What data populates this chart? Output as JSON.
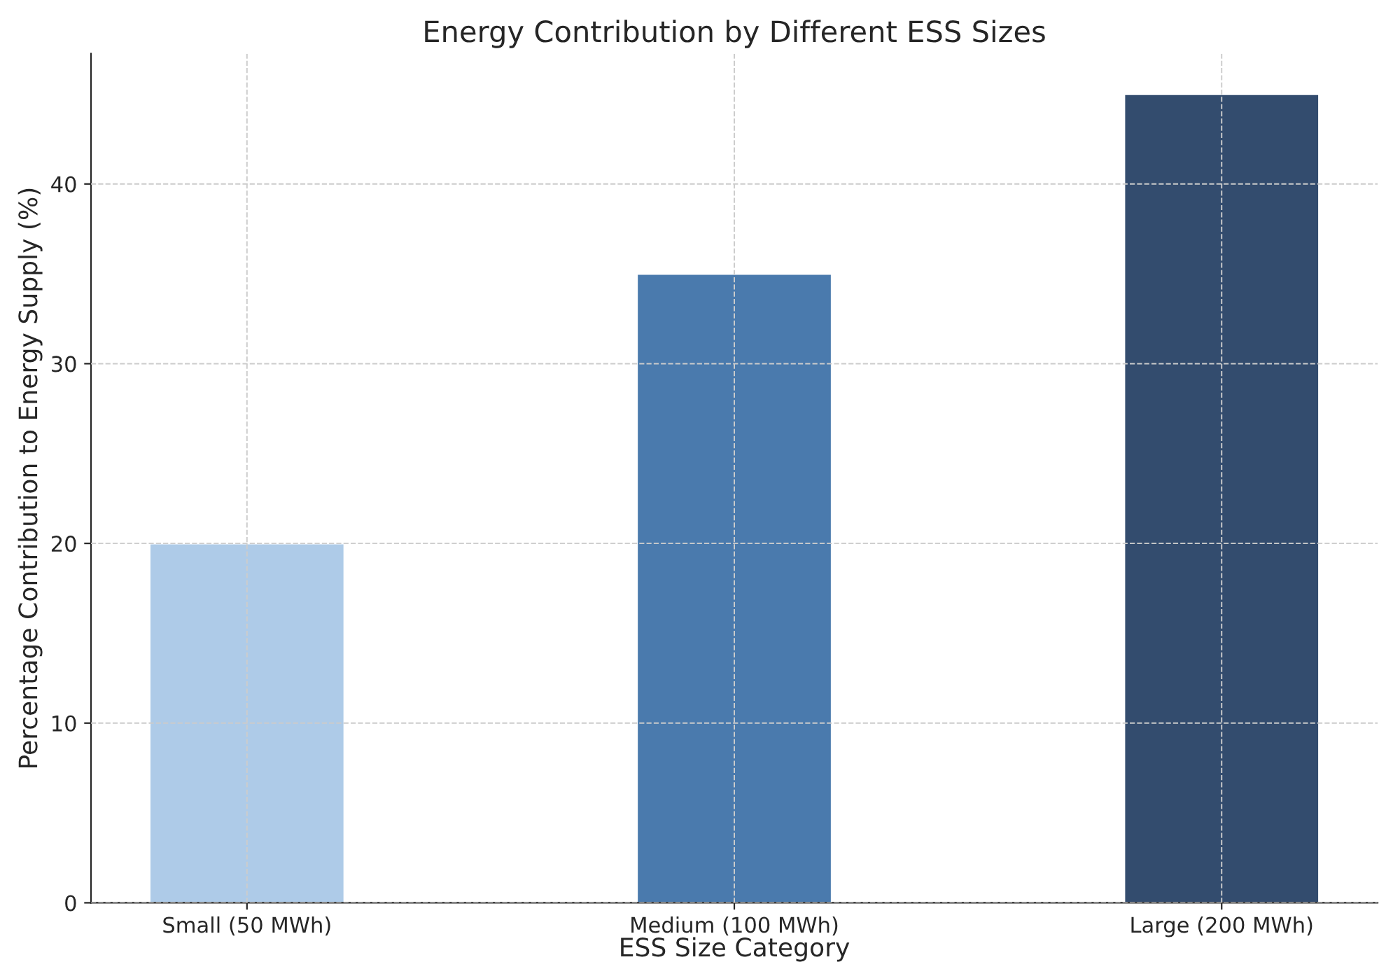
{
  "chart_data": {
    "type": "bar",
    "title": "Energy Contribution by Different ESS Sizes",
    "xlabel": "ESS Size Category",
    "ylabel": "Percentage Contribution to Energy Supply (%)",
    "categories": [
      "Small (50 MWh)",
      "Medium (100 MWh)",
      "Large (200 MWh)"
    ],
    "values": [
      20,
      35,
      45
    ],
    "colors": [
      "#aecbe8",
      "#4a7aad",
      "#334c6e"
    ],
    "ylim": [
      0,
      47.25
    ],
    "yticks": [
      0,
      10,
      20,
      30,
      40
    ],
    "grid": true
  }
}
